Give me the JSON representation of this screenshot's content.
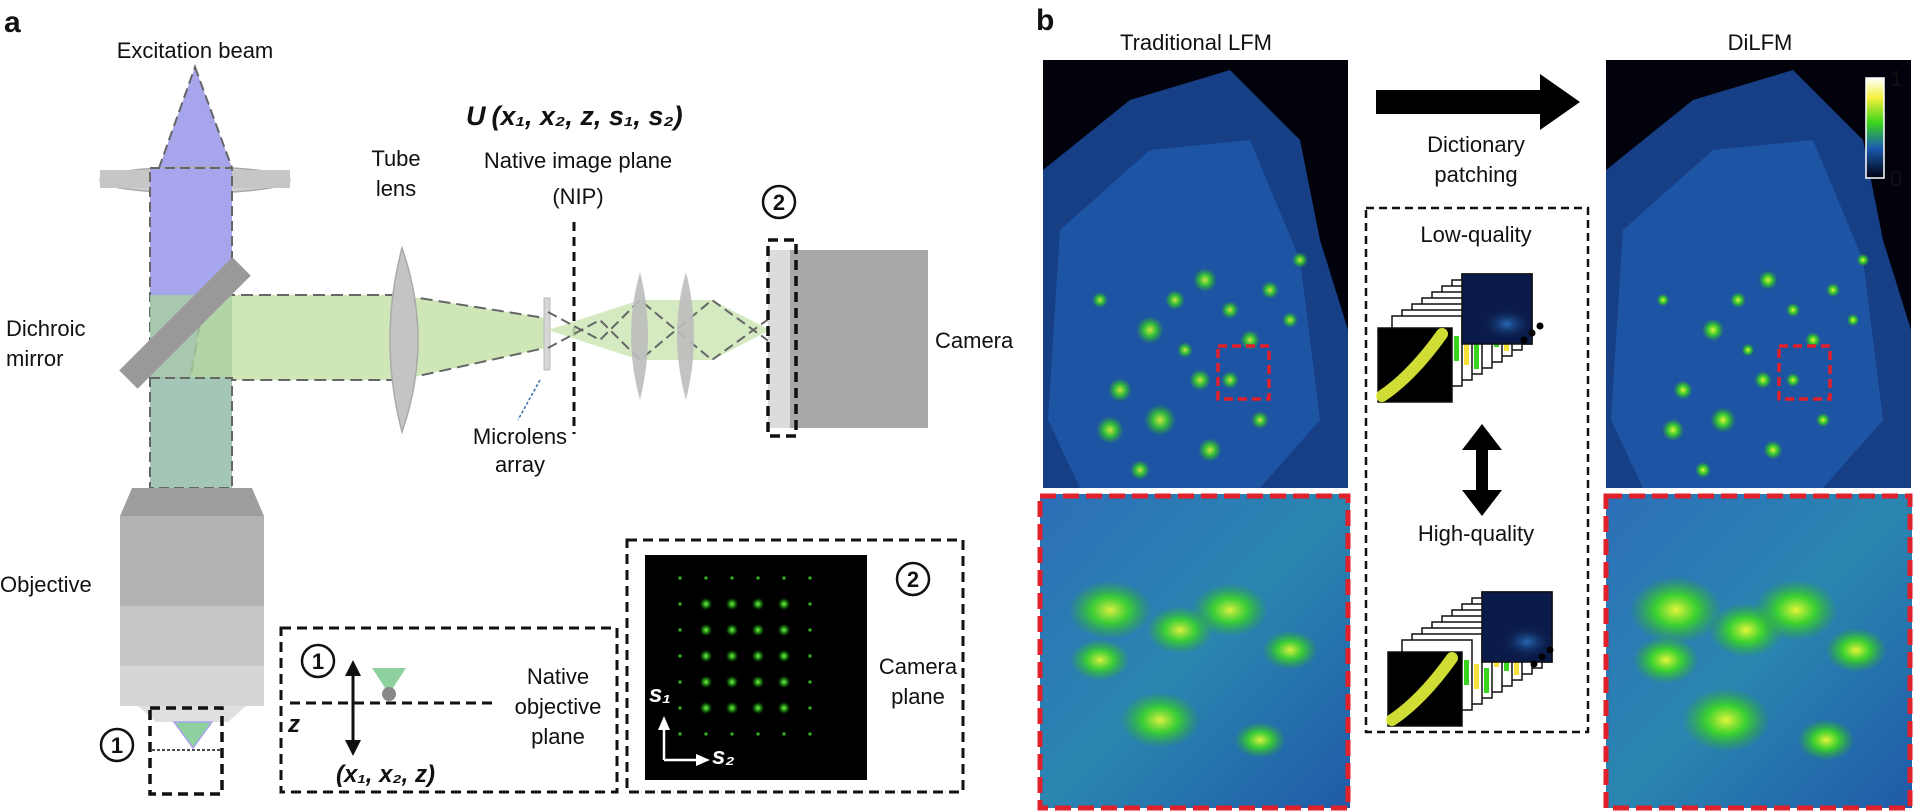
{
  "panel_a": {
    "letter": "a",
    "excitation_beam": "Excitation beam",
    "tube_lens_1": "Tube",
    "tube_lens_2": "lens",
    "formula_prefix": "U",
    "formula": "(x₁, x₂, z, s₁, s₂)",
    "nip_1": "Native image plane",
    "nip_2": "(NIP)",
    "dichroic_1": "Dichroic",
    "dichroic_2": "mirror",
    "camera": "Camera",
    "microlens_1": "Microlens",
    "microlens_2": "array",
    "objective": "Objective",
    "marker_1": "1",
    "marker_2": "2",
    "inset_obj": {
      "marker": "1",
      "z_label": "z",
      "coords": "(x₁, x₂, z)",
      "label_1": "Native",
      "label_2": "objective",
      "label_3": "plane"
    },
    "inset_cam": {
      "marker": "2",
      "s1": "s₁",
      "s2": "s₂",
      "label_1": "Camera",
      "label_2": "plane"
    }
  },
  "panel_b": {
    "letter": "b",
    "traditional": "Traditional LFM",
    "dilfm": "DiLFM",
    "dict_1": "Dictionary",
    "dict_2": "patching",
    "low_quality": "Low-quality",
    "high_quality": "High-quality",
    "colorbar_max": "1",
    "colorbar_min": "0"
  },
  "colors": {
    "excitation": "#a7a6ec",
    "emission": "#cfe6b7",
    "optics_gray": "#bdbdbd",
    "camera_gray": "#a8a8a8",
    "roi_red": "#e0202a",
    "fluor_green": "#4ee01c",
    "fluor_blue": "#1c4fa0"
  }
}
